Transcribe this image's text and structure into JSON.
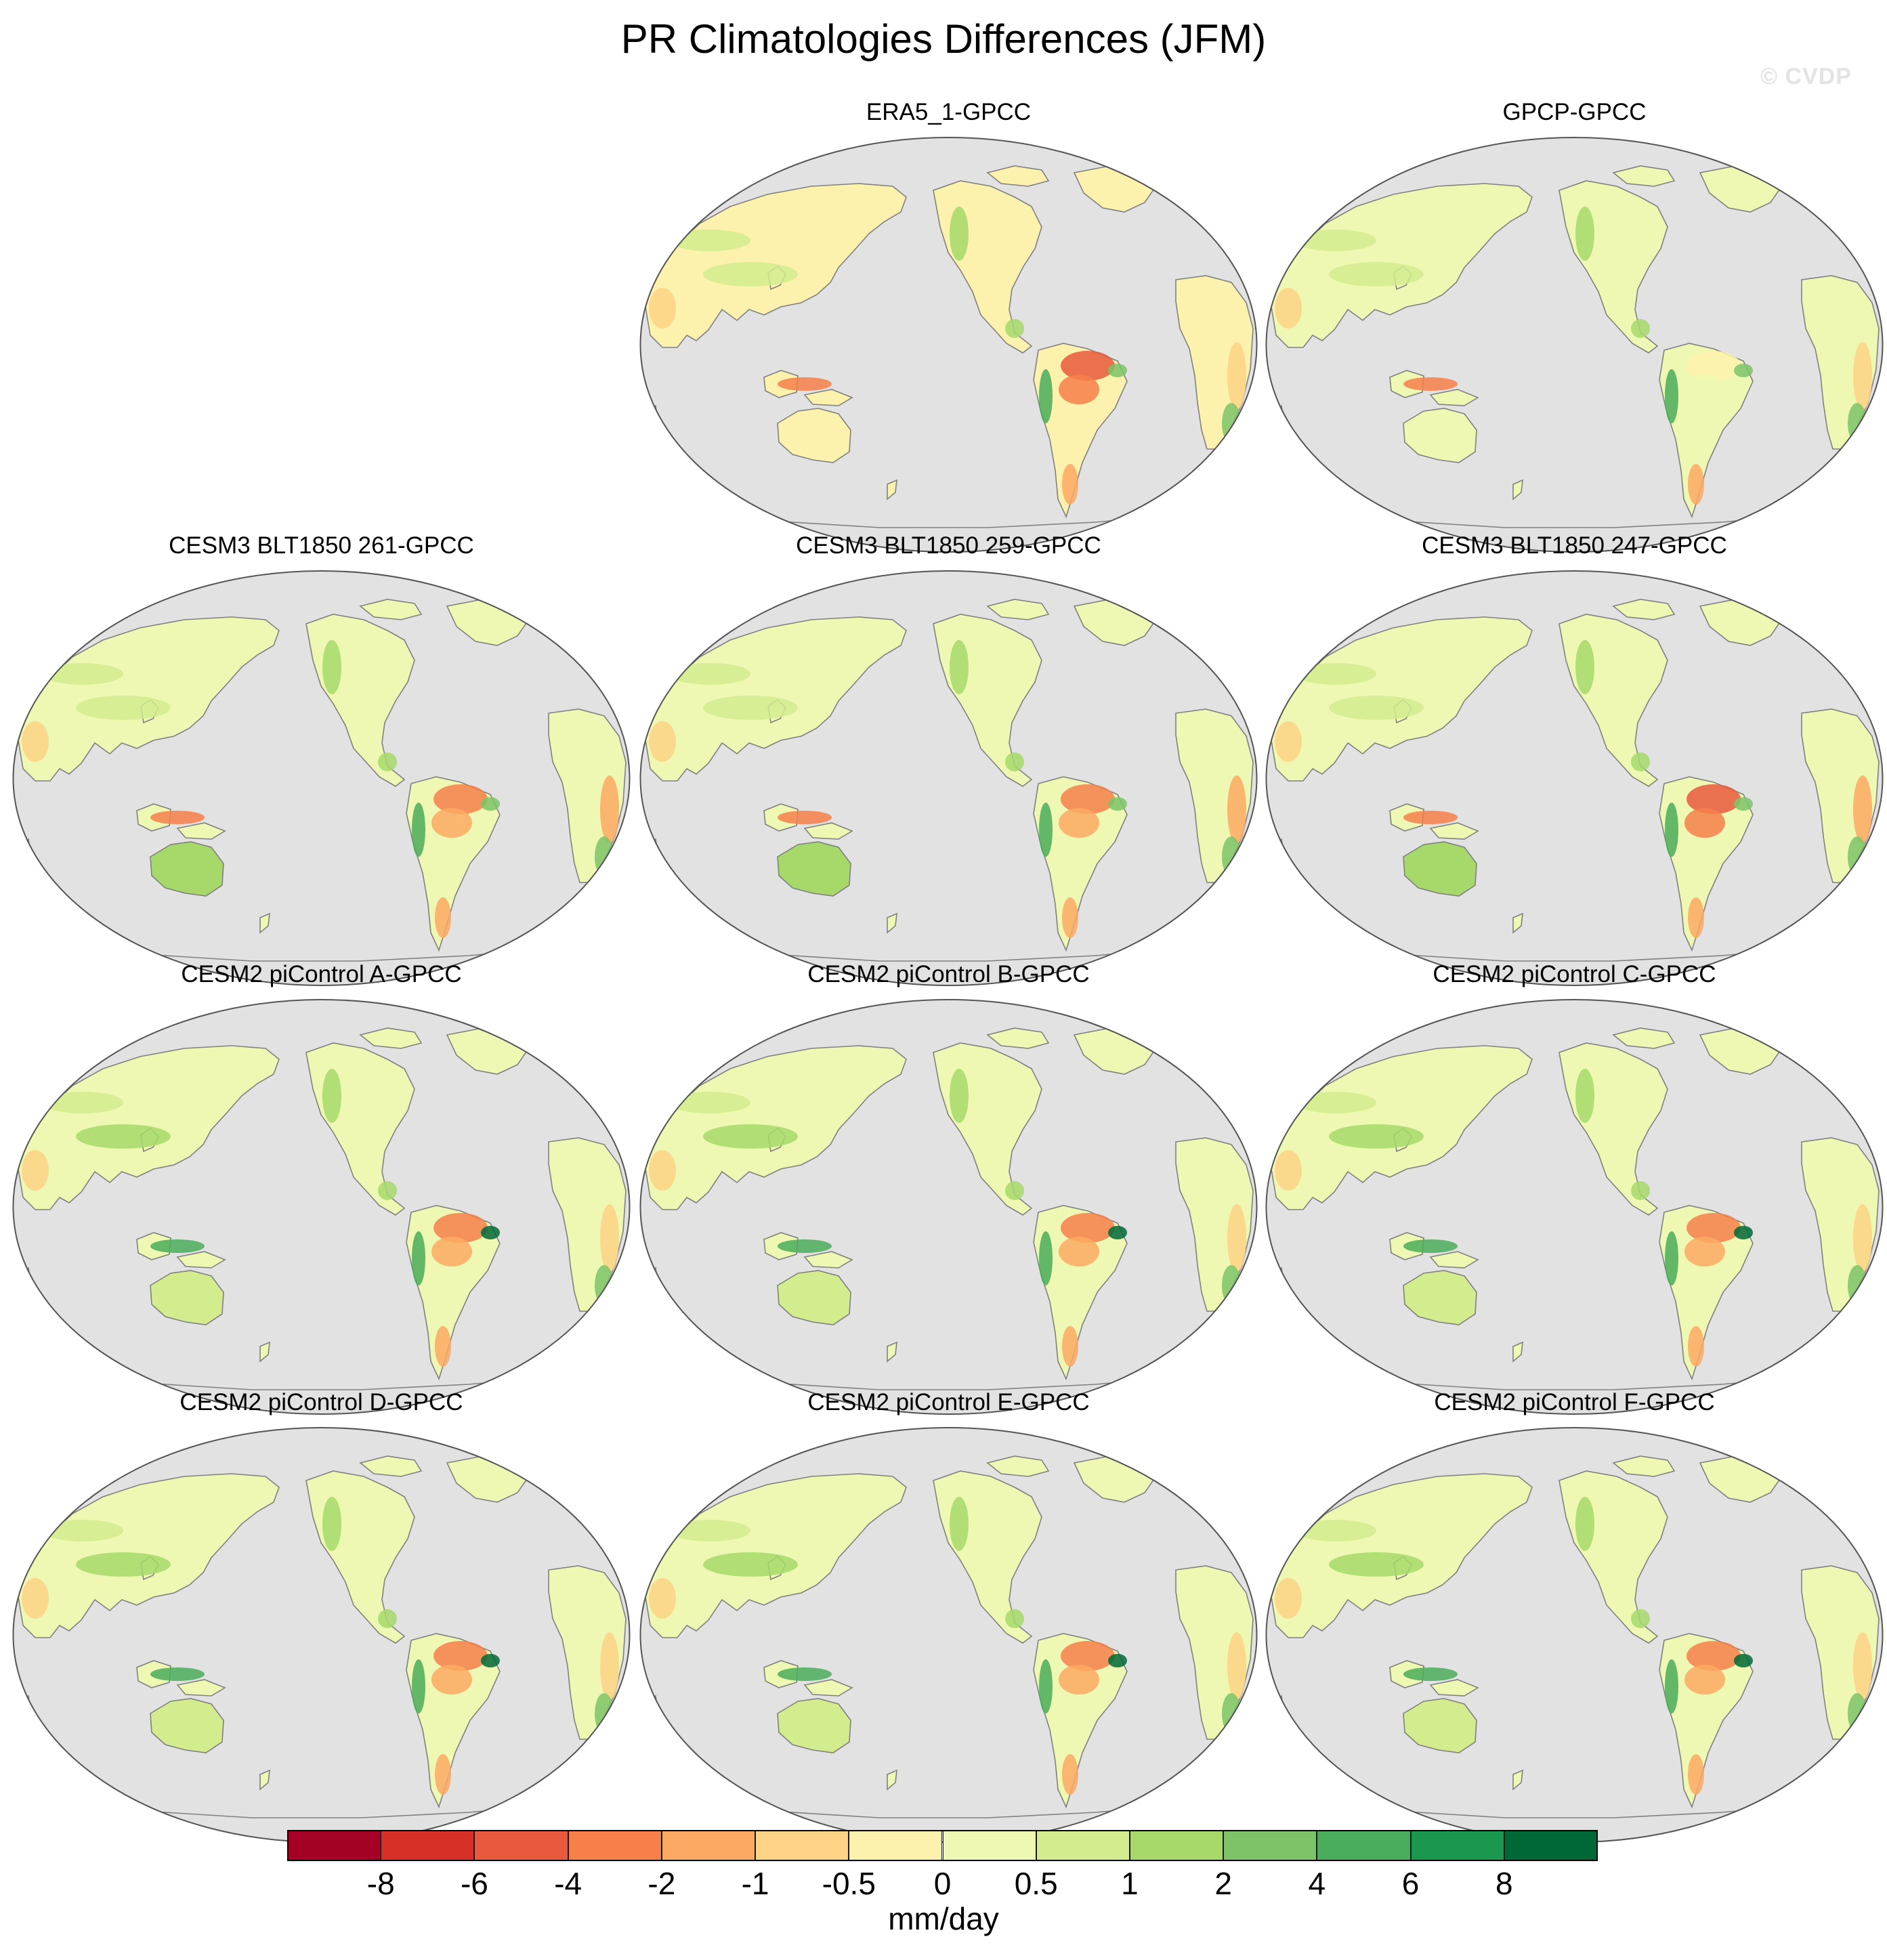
{
  "figure": {
    "title": "PR Climatologies Differences (JFM)",
    "watermark": "© CVDP"
  },
  "panels": [
    {
      "title": "ERA5_1-GPCC",
      "style": {
        "base": 6,
        "amazon": 2,
        "asia": 8,
        "aus": 6,
        "africa": 5
      }
    },
    {
      "title": "GPCP-GPCC",
      "style": {
        "base": 7,
        "amazon": 6,
        "asia": 8,
        "aus": 7,
        "africa": 5
      }
    },
    {
      "title": "CESM3 BLT1850 261-GPCC",
      "style": {
        "base": 7,
        "amazon": 3,
        "asia": 8,
        "aus": 9,
        "africa": 4
      }
    },
    {
      "title": "CESM3 BLT1850 259-GPCC",
      "style": {
        "base": 7,
        "amazon": 3,
        "asia": 8,
        "aus": 9,
        "africa": 4
      }
    },
    {
      "title": "CESM3 BLT1850 247-GPCC",
      "style": {
        "base": 7,
        "amazon": 2,
        "asia": 8,
        "aus": 9,
        "africa": 4
      }
    },
    {
      "title": "CESM2 piControl A-GPCC",
      "style": {
        "base": 7,
        "amazon": 3,
        "asia": 9,
        "aus": 8,
        "africa": 5
      }
    },
    {
      "title": "CESM2 piControl B-GPCC",
      "style": {
        "base": 7,
        "amazon": 3,
        "asia": 9,
        "aus": 8,
        "africa": 5
      }
    },
    {
      "title": "CESM2 piControl C-GPCC",
      "style": {
        "base": 7,
        "amazon": 3,
        "asia": 9,
        "aus": 8,
        "africa": 5
      }
    },
    {
      "title": "CESM2 piControl D-GPCC",
      "style": {
        "base": 7,
        "amazon": 3,
        "asia": 9,
        "aus": 8,
        "africa": 5
      }
    },
    {
      "title": "CESM2 piControl E-GPCC",
      "style": {
        "base": 7,
        "amazon": 3,
        "asia": 9,
        "aus": 8,
        "africa": 5
      }
    },
    {
      "title": "CESM2 piControl F-GPCC",
      "style": {
        "base": 7,
        "amazon": 3,
        "asia": 9,
        "aus": 8,
        "africa": 5
      }
    }
  ],
  "map_colors": {
    "ocean": "#e2e2e2",
    "coast": "#808080",
    "outline": "#555555"
  },
  "colorbar": {
    "units": "mm/day",
    "colors": [
      "#a50026",
      "#d73027",
      "#e8593d",
      "#f67f4a",
      "#fca963",
      "#fdd385",
      "#fdf2ad",
      "#eff8b2",
      "#d2ec8e",
      "#a6d96a",
      "#7cc467",
      "#4aad5b",
      "#1a9850",
      "#006837"
    ],
    "tick_labels": [
      "-8",
      "-6",
      "-4",
      "-2",
      "-1",
      "-0.5",
      "0",
      "0.5",
      "1",
      "2",
      "4",
      "6",
      "8"
    ]
  }
}
